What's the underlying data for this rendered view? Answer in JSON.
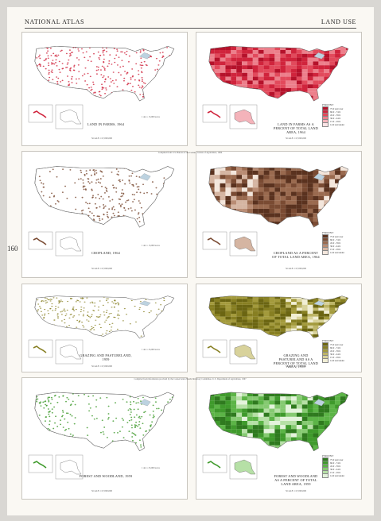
{
  "header": {
    "left": "NATIONAL ATLAS",
    "right": "LAND USE"
  },
  "page_number": "160",
  "compiled_notes": [
    "Compiled from U.S. Bureau of the Census, Census of Agriculture, 1964",
    "Compiled from information provided by the Conservation Needs Inventory Committee, U.S. Department of Agriculture, 1967"
  ],
  "maps": [
    {
      "caption": "LAND IN FARMS, 1964",
      "scale": "SCALE 1:17,000,000",
      "dot": "1 dot = 15,000 acres",
      "kind": "dot",
      "theme": "farms"
    },
    {
      "caption": "LAND IN FARMS AS A PERCENT OF TOTAL LAND AREA, 1964",
      "scale": "SCALE 1:17,000,000",
      "kind": "choro",
      "theme": "farms",
      "legend_title": "PERCENT",
      "legend": [
        "75.0 and over",
        "60.0 - 74.9",
        "45.0 - 59.9",
        "30.0 - 44.9",
        "15.0 - 29.9",
        "14.9 and under"
      ]
    },
    {
      "caption": "CROPLAND, 1964",
      "scale": "SCALE 1:17,000,000",
      "dot": "1 dot = 15,000 acres",
      "kind": "dot",
      "theme": "crop"
    },
    {
      "caption": "CROPLAND AS A PERCENT OF TOTAL LAND AREA, 1964",
      "scale": "SCALE 1:17,000,000",
      "kind": "choro",
      "theme": "crop",
      "legend_title": "PERCENT",
      "legend": [
        "75.0 and over",
        "60.0 - 74.9",
        "45.0 - 59.9",
        "30.0 - 44.9",
        "15.0 - 29.9",
        "14.9 and under"
      ]
    },
    {
      "caption": "GRAZING AND PASTURELAND, 1959",
      "scale": "SCALE 1:17,000,000",
      "dot": "1 dot = 25,000 acres",
      "kind": "dot",
      "theme": "graze"
    },
    {
      "caption": "GRAZING AND PASTURELAND AS A PERCENT OF TOTAL LAND AREA, 1959",
      "scale": "SCALE 1:17,000,000",
      "kind": "choro",
      "theme": "graze",
      "legend_title": "PERCENT",
      "legend": [
        "75.0 and over",
        "60.0 - 74.9",
        "45.0 - 59.9",
        "30.0 - 44.9",
        "15.0 - 29.9",
        "14.9 and under"
      ]
    },
    {
      "caption": "FOREST AND WOODLAND, 1959",
      "scale": "SCALE 1:17,000,000",
      "dot": "1 dot = 25,000 acres",
      "kind": "dot",
      "theme": "forest"
    },
    {
      "caption": "FOREST AND WOODLAND AS A PERCENT OF TOTAL LAND AREA, 1959",
      "scale": "SCALE 1:17,000,000",
      "kind": "choro",
      "theme": "forest",
      "legend_title": "PERCENT",
      "legend": [
        "75.0 and over",
        "60.0 - 74.9",
        "45.0 - 59.9",
        "30.0 - 44.9",
        "15.0 - 29.9",
        "14.9 and under"
      ]
    }
  ],
  "colors": {
    "farms": [
      "#b5122b",
      "#d0243c",
      "#e24a5c",
      "#ec7f8b",
      "#f4b3ba",
      "#fbe3e5"
    ],
    "crop": [
      "#5a321f",
      "#7a4b33",
      "#9a6a4f",
      "#b98c74",
      "#d5b5a2",
      "#f3e6dc"
    ],
    "graze": [
      "#6b6512",
      "#877f22",
      "#a39a3c",
      "#bdb566",
      "#d8d29b",
      "#f1eed4"
    ],
    "forest": [
      "#2f7a1f",
      "#3f9a2c",
      "#5cb447",
      "#86ca72",
      "#b6e0a6",
      "#e4f3dc"
    ]
  }
}
